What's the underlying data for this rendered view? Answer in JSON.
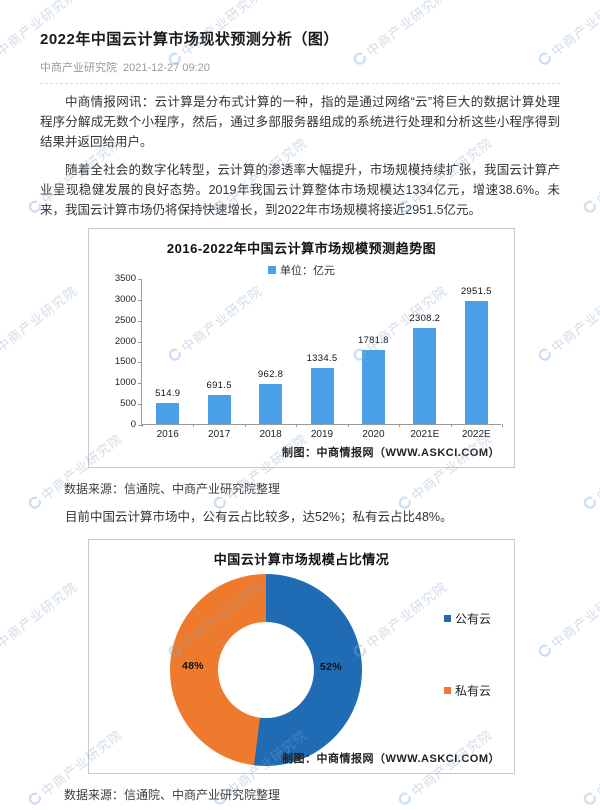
{
  "article": {
    "title": "2022年中国云计算市场现状预测分析（图）",
    "source": "中商产业研究院",
    "date": "2021-12-27 09:20",
    "paragraph1": "中商情报网讯：云计算是分布式计算的一种，指的是通过网络“云”将巨大的数据计算处理程序分解成无数个小程序，然后，通过多部服务器组成的系统进行处理和分析这些小程序得到结果并返回给用户。",
    "paragraph2": "随着全社会的数字化转型，云计算的渗透率大幅提升，市场规模持续扩张，我国云计算产业呈现稳健发展的良好态势。2019年我国云计算整体市场规模达1334亿元，增速38.6%。未来，我国云计算市场仍将保持快速增长，到2022年市场规模将接近2951.5亿元。",
    "insight": "目前中国云计算市场中，公有云占比较多，达52%；私有云占比48%。",
    "data_source_note": "数据来源：信通院、中商产业研究院整理"
  },
  "watermark": {
    "text": "中商产业研究院"
  },
  "chart_data": [
    {
      "type": "bar",
      "title": "2016-2022年中国云计算市场规模预测趋势图",
      "legend": "单位：亿元",
      "categories": [
        "2016",
        "2017",
        "2018",
        "2019",
        "2020",
        "2021E",
        "2022E"
      ],
      "values": [
        514.9,
        691.5,
        962.8,
        1334.5,
        1781.8,
        2308.2,
        2951.5
      ],
      "ylim": [
        0,
        3500
      ],
      "yticks": [
        0,
        500,
        1000,
        1500,
        2000,
        2500,
        3000,
        3500
      ],
      "bar_color": "#4aa0e8",
      "footer": "制图：中商情报网（WWW.ASKCI.COM）"
    },
    {
      "type": "pie",
      "title": "中国云计算市场规模占比情况",
      "slices": [
        {
          "name": "公有云",
          "value": 52,
          "label": "52%",
          "color": "#1f6bb4"
        },
        {
          "name": "私有云",
          "value": 48,
          "label": "48%",
          "color": "#ed7a2d"
        }
      ],
      "footer": "制图：中商情报网（WWW.ASKCI.COM）"
    }
  ]
}
